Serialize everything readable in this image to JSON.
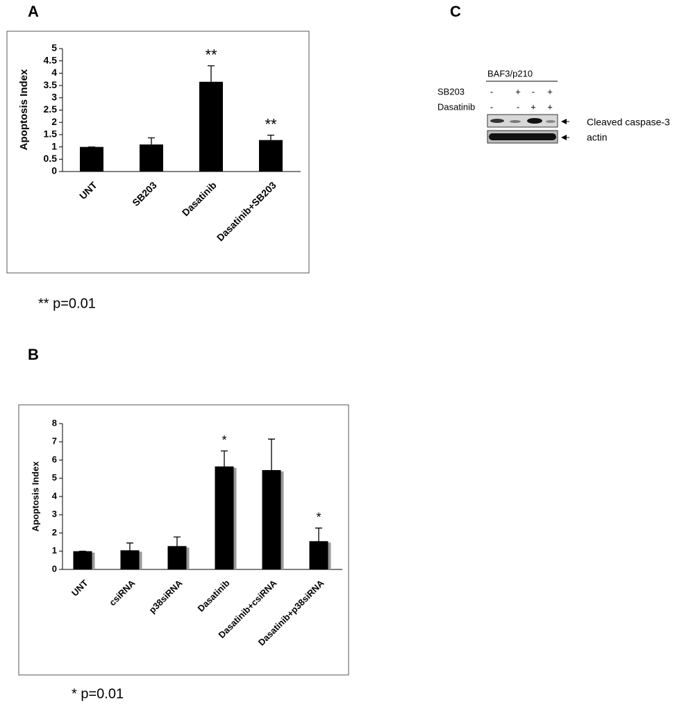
{
  "chart_data": [
    {
      "type": "bar",
      "panel": "A",
      "ylabel": "Apoptosis Index",
      "categories": [
        "UNT",
        "SB203",
        "Dasatinib",
        "Dasatinib+SB203"
      ],
      "values": [
        1,
        1.1,
        3.65,
        1.28
      ],
      "errors": [
        0,
        0.27,
        0.65,
        0.2
      ],
      "color": "#000000",
      "ylim": [
        0,
        5
      ],
      "yticks": [
        0,
        0.5,
        1,
        1.5,
        2,
        2.5,
        3,
        3.5,
        4,
        4.5,
        5
      ],
      "annotations": [
        {
          "text": "**",
          "category": "Dasatinib"
        },
        {
          "text": "**",
          "category": "Dasatinib+SB203"
        }
      ],
      "note": "** p=0.01"
    },
    {
      "type": "bar",
      "panel": "B",
      "ylabel": "Apoptosis Index",
      "categories": [
        "UNT",
        "csiRNA",
        "p38siRNA",
        "Dasatinib",
        "Dasatinib+csiRNA",
        "Dasatinib+p38siRNA"
      ],
      "values": [
        1,
        1.05,
        1.28,
        5.65,
        5.45,
        1.55
      ],
      "errors": [
        0,
        0.4,
        0.5,
        0.85,
        1.7,
        0.72
      ],
      "color": "#000000",
      "ylim": [
        0,
        8
      ],
      "yticks": [
        0,
        1,
        2,
        3,
        4,
        5,
        6,
        7,
        8
      ],
      "annotations": [
        {
          "text": "*",
          "category": "Dasatinib"
        },
        {
          "text": "*",
          "category": "Dasatinib+p38siRNA"
        }
      ],
      "note": "* p=0.01"
    }
  ],
  "blot": {
    "panel": "C",
    "cell_line": "BAF3/p210",
    "rows": [
      {
        "label": "SB203",
        "signs": [
          "-",
          "+",
          "-",
          "+"
        ]
      },
      {
        "label": "Dasatinib",
        "signs": [
          "-",
          "-",
          "+",
          "+"
        ]
      }
    ],
    "bands": [
      "Cleaved caspase-3",
      "actin"
    ]
  }
}
